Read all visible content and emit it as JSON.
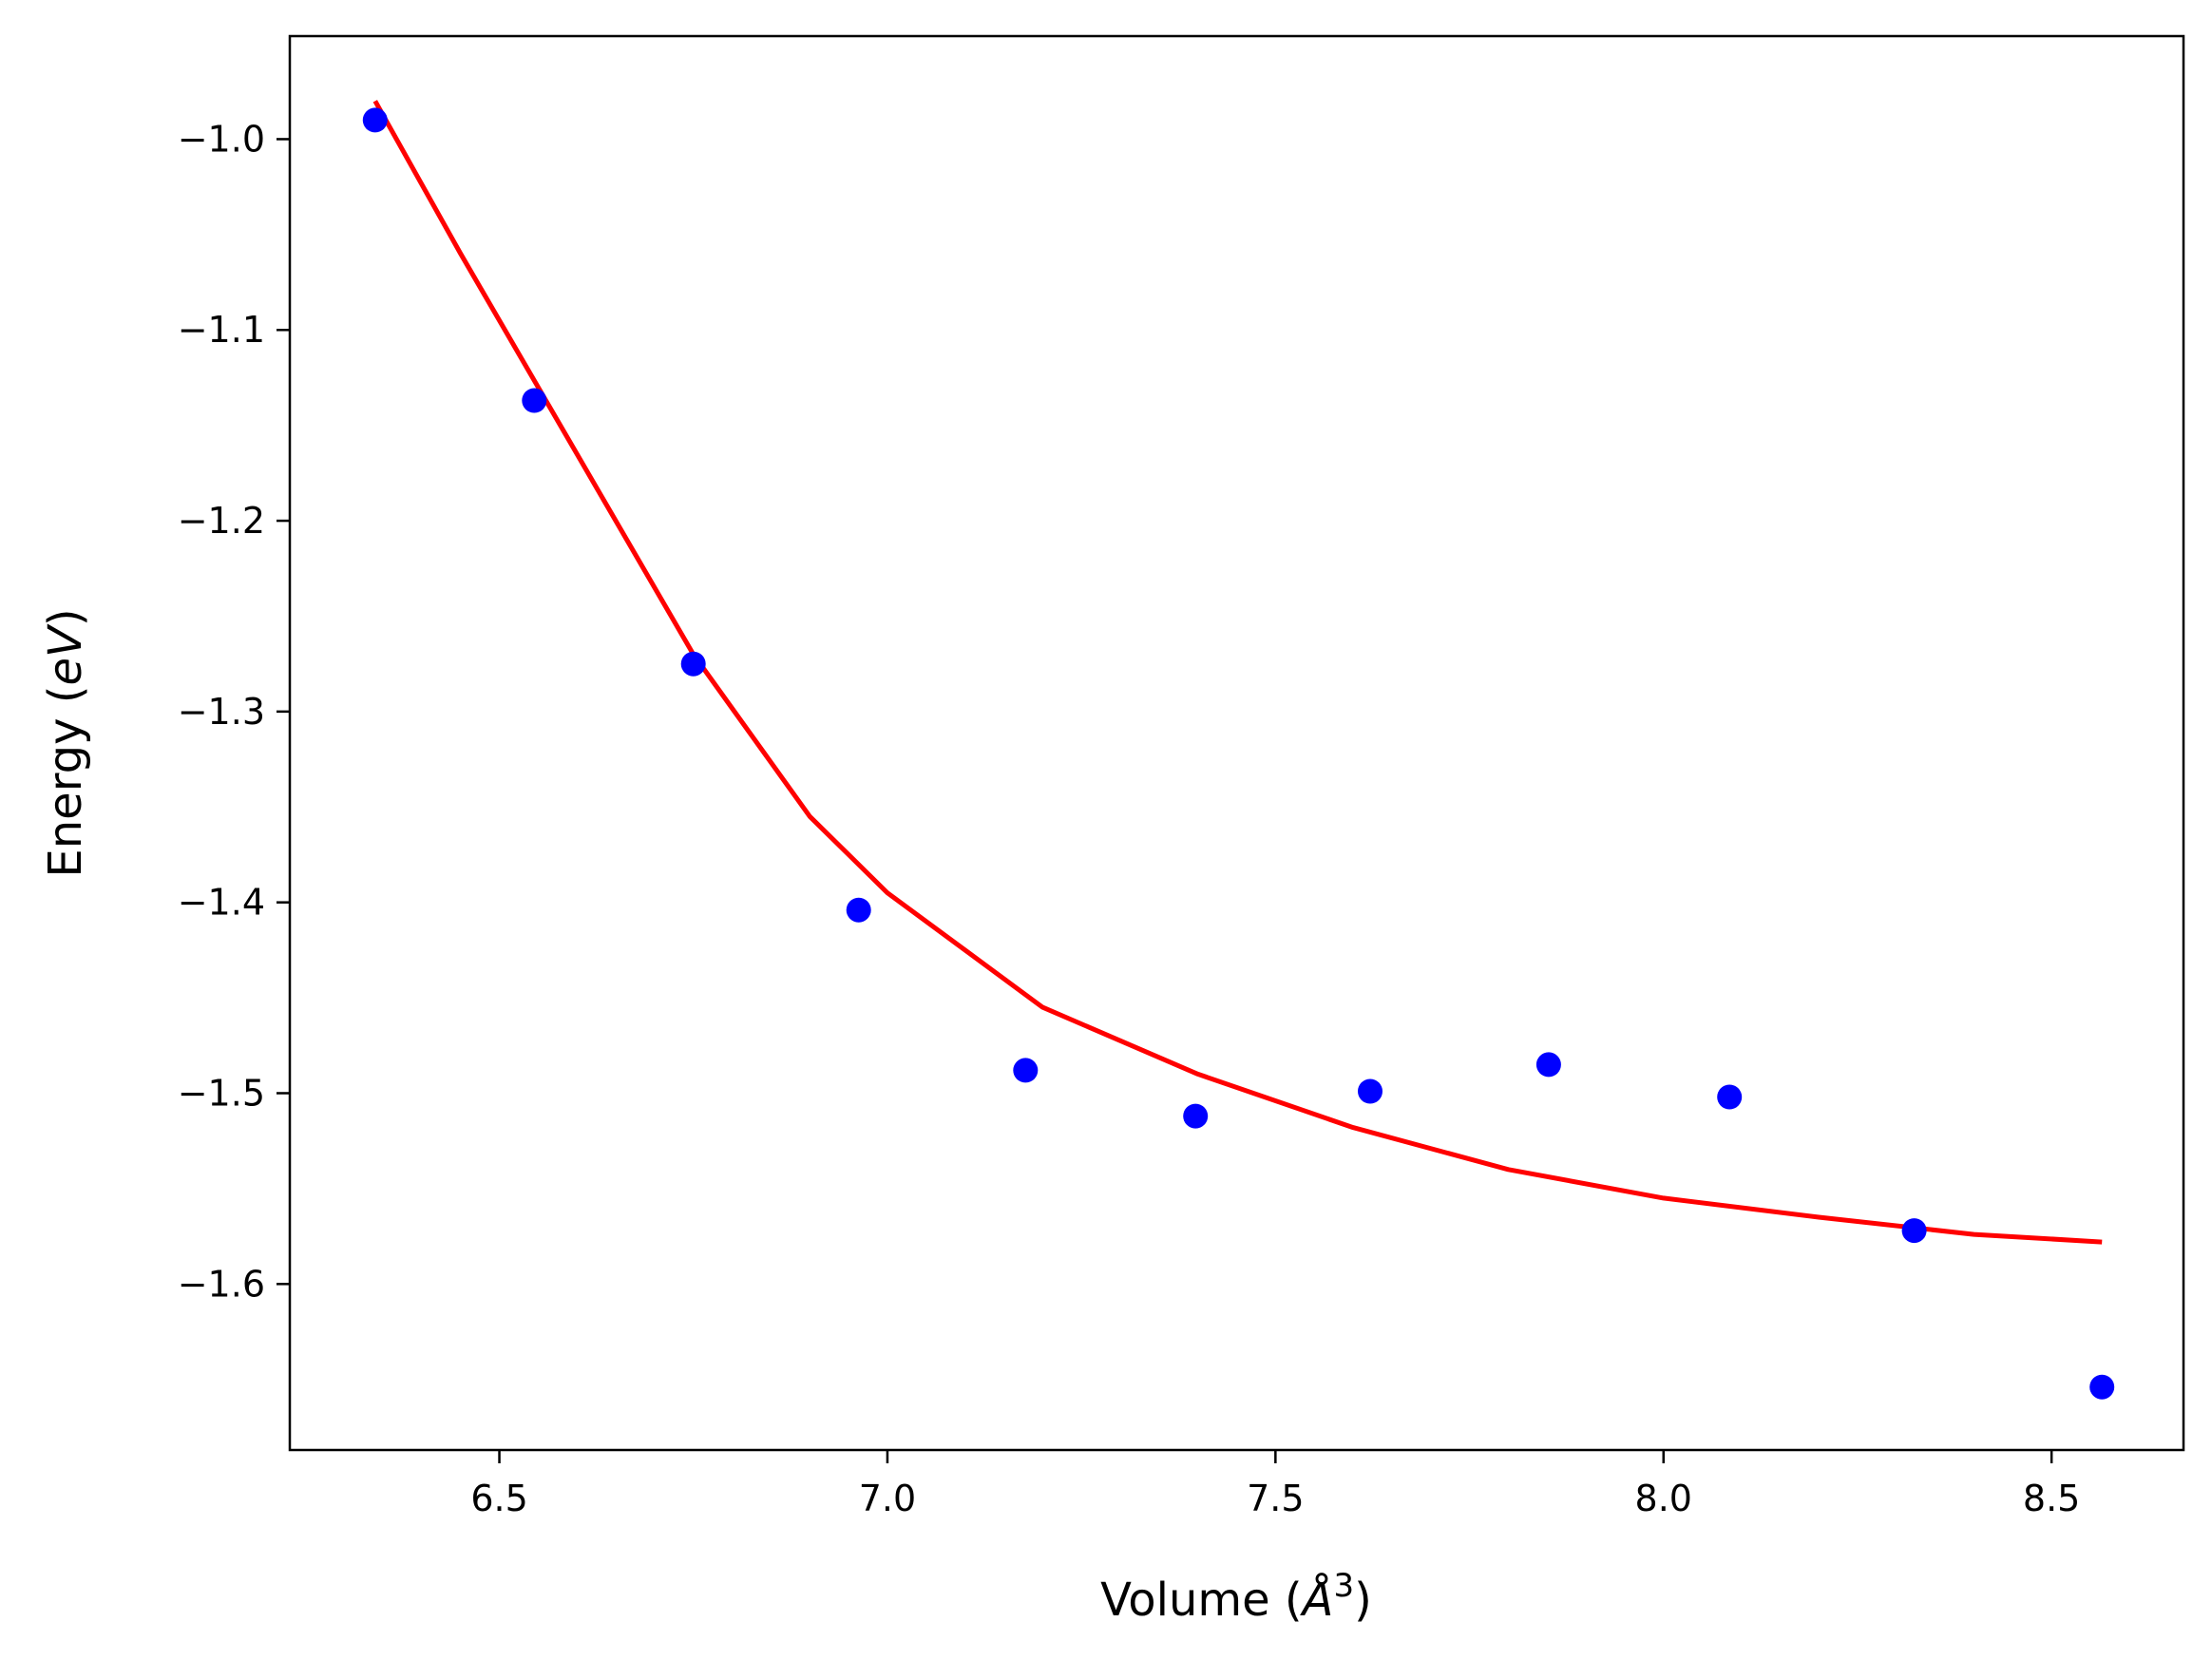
{
  "chart_data": {
    "type": "scatter",
    "title": "",
    "xlabel_text": "Volume (",
    "xlabel_math": "Å",
    "xlabel_sup": "3",
    "xlabel_close": ")",
    "ylabel_text": "Energy (",
    "ylabel_math": "eV",
    "ylabel_close": ")",
    "xlim": [
      6.23,
      8.67
    ],
    "ylim": [
      -1.687,
      -0.946
    ],
    "xticks": [
      6.5,
      7.0,
      7.5,
      8.0,
      8.5
    ],
    "xtick_labels": [
      "6.5",
      "7.0",
      "7.5",
      "8.0",
      "8.5"
    ],
    "yticks": [
      -1.0,
      -1.1,
      -1.2,
      -1.3,
      -1.4,
      -1.5,
      -1.6
    ],
    "ytick_labels": [
      "−1.0",
      "−1.1",
      "−1.2",
      "−1.3",
      "−1.4",
      "−1.5",
      "−1.6"
    ],
    "grid": false,
    "series": [
      {
        "kind": "points",
        "color": "#0000ff",
        "x": [
          6.34,
          6.545,
          6.75,
          6.963,
          7.178,
          7.397,
          7.622,
          7.852,
          8.085,
          8.323,
          8.565
        ],
        "y": [
          -0.99,
          -1.137,
          -1.275,
          -1.404,
          -1.488,
          -1.512,
          -1.499,
          -1.485,
          -1.502,
          -1.572,
          -1.654
        ]
      },
      {
        "kind": "fit-line",
        "color": "#ff0000",
        "x": [
          6.34,
          6.45,
          6.6,
          6.75,
          6.9,
          7.0,
          7.2,
          7.4,
          7.6,
          7.8,
          8.0,
          8.2,
          8.4,
          8.565
        ],
        "y": [
          -0.98,
          -1.06,
          -1.165,
          -1.27,
          -1.355,
          -1.395,
          -1.455,
          -1.49,
          -1.518,
          -1.54,
          -1.555,
          -1.565,
          -1.574,
          -1.578
        ]
      }
    ]
  }
}
